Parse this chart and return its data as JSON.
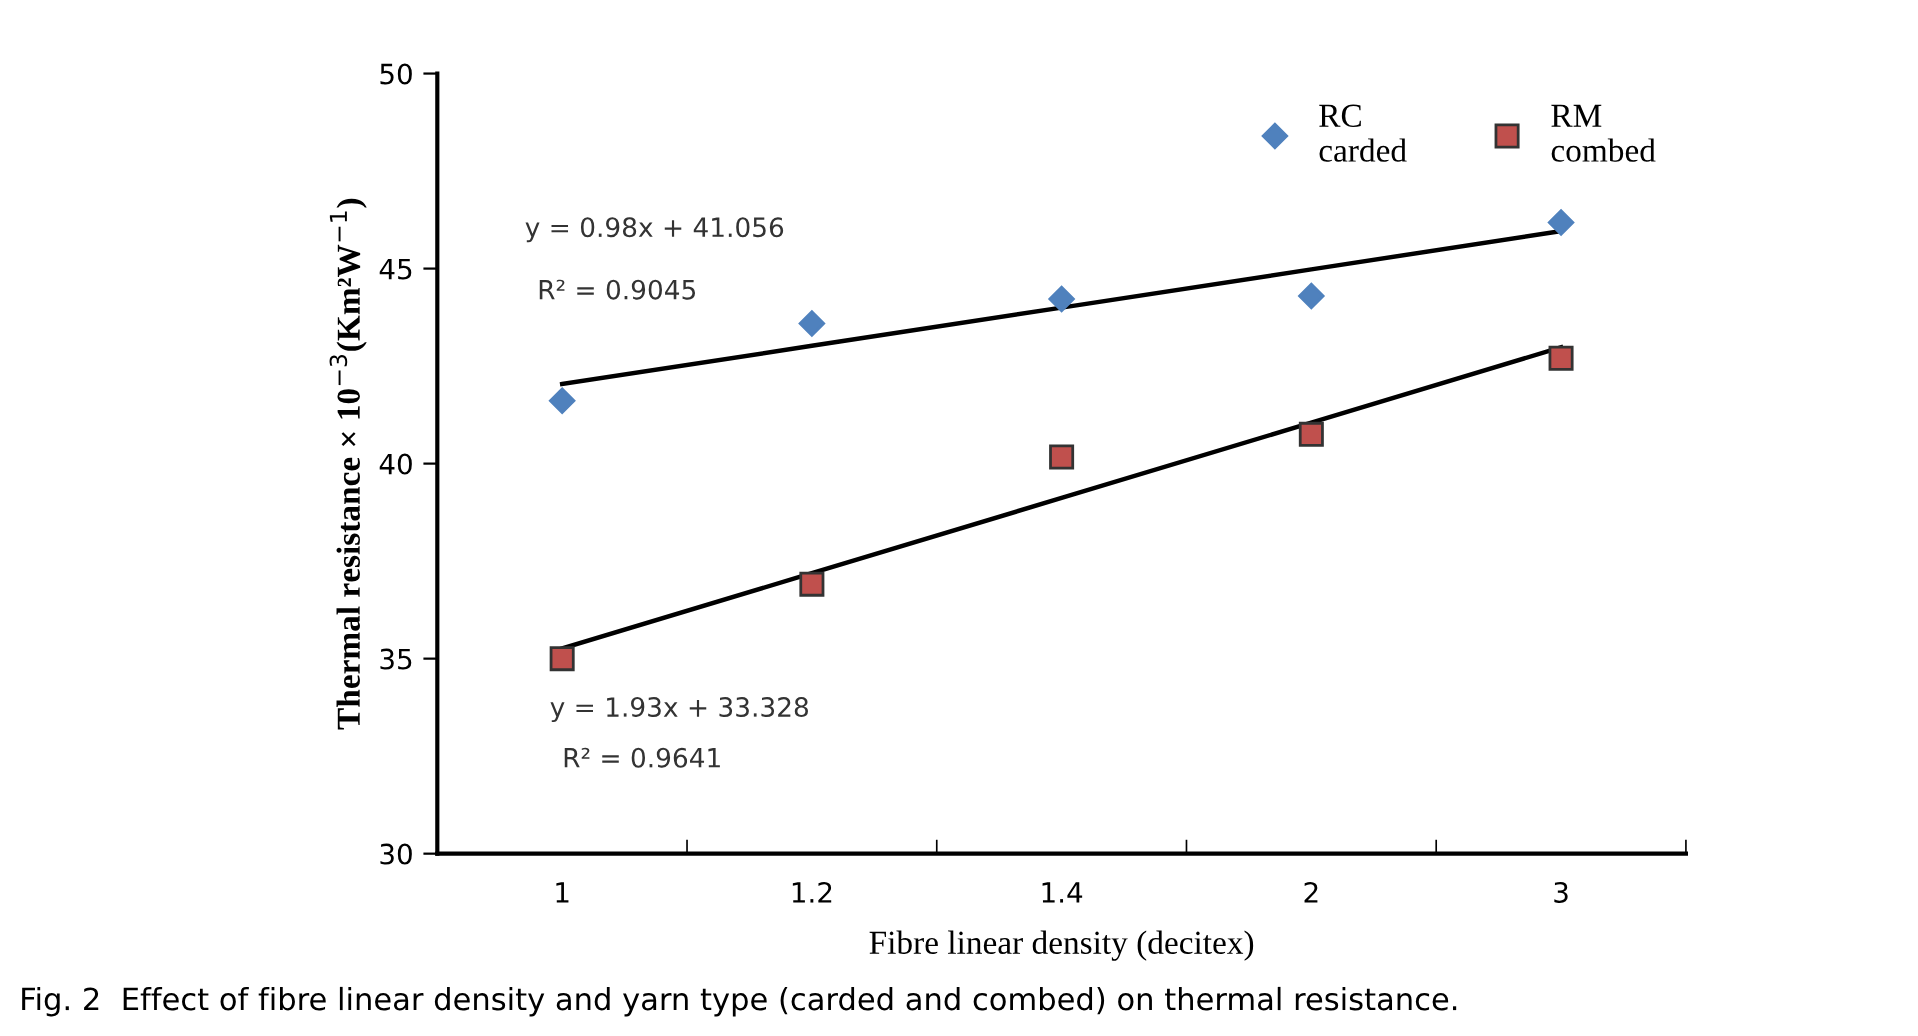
{
  "chart_data": {
    "type": "scatter",
    "xlabel": "Fibre linear density (decitex)",
    "ylabel": "Thermal resistance × 10$^{−3}$(Km²W$^{−1}$)",
    "categories": [
      "1",
      "1.2",
      "1.4",
      "2",
      "3"
    ],
    "series": [
      {
        "name": "RC\ncarded",
        "marker": "diamond",
        "color": "#4f81bd",
        "values": [
          41.61,
          43.59,
          44.22,
          44.3,
          46.18
        ]
      },
      {
        "name": "RM\ncombed",
        "marker": "square",
        "color": "#c0504d",
        "values": [
          35.0,
          36.91,
          40.17,
          40.75,
          42.7
        ]
      },
      {
        "type": "line",
        "marker": "none",
        "color": "#000000",
        "values": [
          42.04,
          43.02,
          44.0,
          44.98,
          45.96
        ]
      },
      {
        "type": "line",
        "marker": "none",
        "color": "#000000",
        "values": [
          35.26,
          37.19,
          39.12,
          41.05,
          42.98
        ]
      }
    ],
    "ylim": [
      30,
      50
    ],
    "yticks": [
      30,
      35,
      40,
      45,
      50
    ],
    "grid": false,
    "legend": "top right",
    "annotations": [
      "y = 0.98x + 41.056",
      "R² = 0.9045",
      "y = 1.93x + 33.328",
      "R² = 0.9641",
      "Fig. 2  Effect of fibre linear density and yarn type (carded and combed) on thermal resistance."
    ]
  }
}
